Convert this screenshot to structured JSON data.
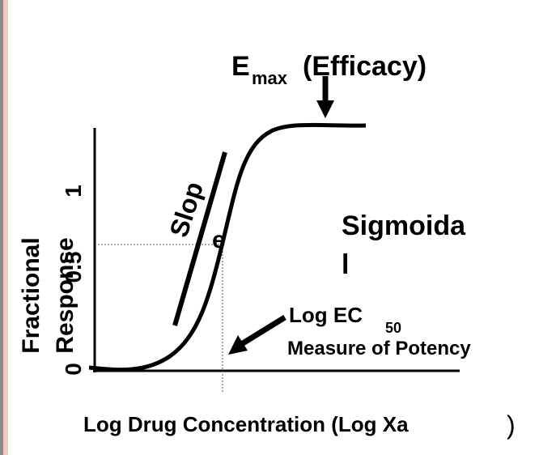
{
  "title": {
    "main": "E",
    "subscript": "max",
    "suffix": "(Efficacy)"
  },
  "slope_label": {
    "line1": "Slop",
    "line2": "e"
  },
  "shape_label": {
    "line1": "Sigmoida",
    "line2": "l"
  },
  "potency_label": {
    "main": "Log EC",
    "subscript": "50",
    "line2": "Measure of Potency"
  },
  "y_axis": {
    "label_line1": "Fractional",
    "label_line2": "Response",
    "ticks": [
      "1",
      "0.5",
      "0"
    ]
  },
  "x_axis": {
    "label": "Log Drug Concentration (Log Xa",
    "label_end": ")"
  }
}
